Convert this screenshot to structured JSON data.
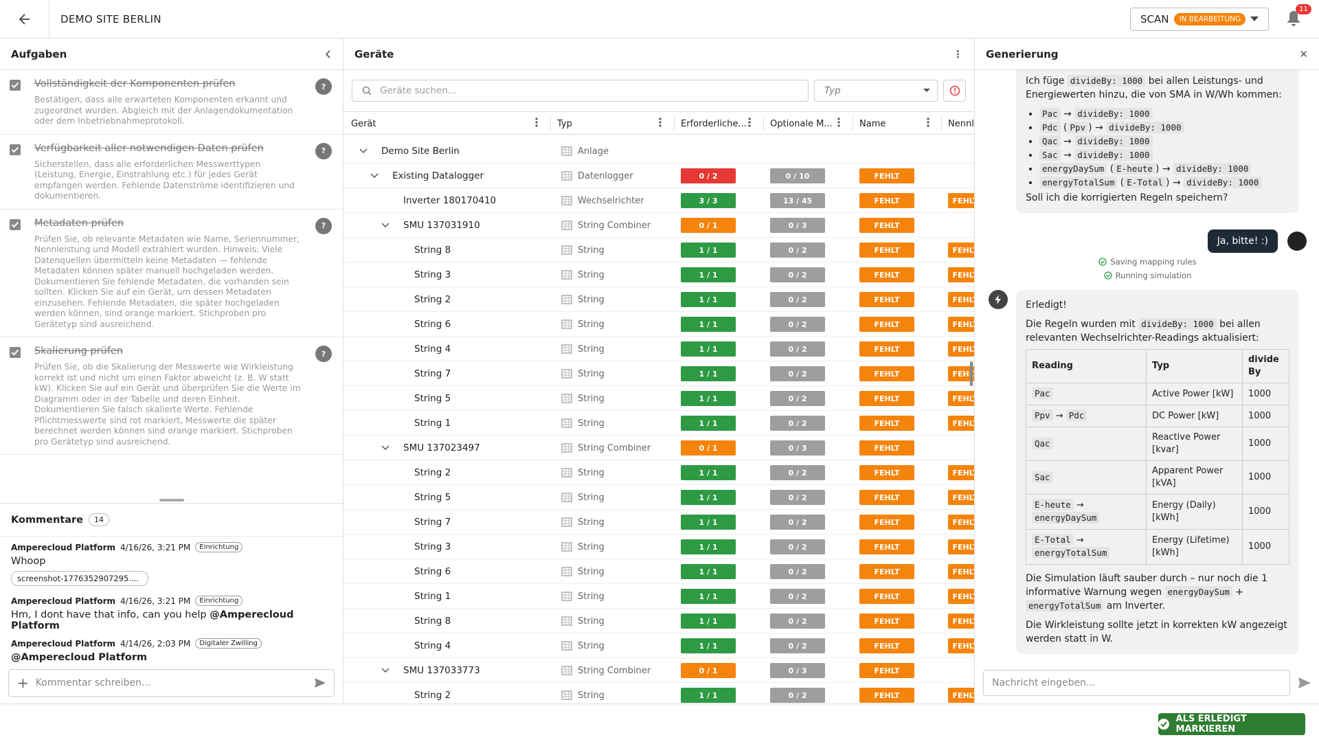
{
  "header": {
    "title": "DEMO SITE BERLIN",
    "scan": "SCAN",
    "status": "IN BEARBEITUNG",
    "notifications": "11"
  },
  "tasks": {
    "title": "Aufgaben",
    "help": "?",
    "items": [
      {
        "title": "Vollständigkeit der Komponenten prüfen",
        "description": "Bestätigen, dass alle erwarteten Komponenten erkannt und zugeordnet wurden. Abgleich mit der Anlagendokumentation oder dem Inbetriebnahmeprotokoll."
      },
      {
        "title": "Verfügbarkeit aller notwendigen Daten prüfen",
        "description": "Sicherstellen, dass alle erforderlichen Messwerttypen (Leistung, Energie, Einstrahlung etc.) für jedes Gerät empfangen werden. Fehlende Datenströme identifizieren und dokumentieren."
      },
      {
        "title": "Metadaten prüfen",
        "description": "Prüfen Sie, ob relevante Metadaten wie Name, Seriennummer, Nennleistung und Modell extrahiert wurden. Hinweis: Viele Datenquellen übermitteln keine Metadaten — fehlende Metadaten können später manuell hochgeladen werden. Dokumentieren Sie fehlende Metadaten, die vorhanden sein sollten. Klicken Sie auf ein Gerät, um dessen Metadaten einzusehen. Fehlende Metadaten, die später hochgeladen werden können, sind orange markiert. Stichproben pro Gerätetyp sind ausreichend."
      },
      {
        "title": "Skalierung prüfen",
        "description": "Prüfen Sie, ob die Skalierung der Messwerte wie Wirkleistung korrekt ist und nicht um einen Faktor abweicht (z. B. W statt kW). Klicken Sie auf ein Gerät und überprüfen Sie die Werte im Diagramm oder in der Tabelle und deren Einheit. Dokumentieren Sie falsch skalierte Werte. Fehlende Pflichtmesswerte sind rot markiert, Messwerte die später berechnet werden können sind orange markiert. Stichproben pro Gerätetyp sind ausreichend."
      }
    ]
  },
  "comments": {
    "title": "Kommentare",
    "count": "14",
    "placeholder": "Kommentar schreiben...",
    "items": [
      {
        "author": "Amperecloud Platform",
        "date": "4/16/26, 3:21 PM",
        "tag": "Einrichtung",
        "text": "Whoop",
        "attachment": "screenshot-1776352907295...."
      },
      {
        "author": "Amperecloud Platform",
        "date": "4/16/26, 3:21 PM",
        "tag": "Einrichtung",
        "text": "Hm, I dont have that info, can you help ",
        "mention": "@Amperecloud Platform"
      },
      {
        "author": "Amperecloud Platform",
        "date": "4/14/26, 2:03 PM",
        "tag": "Digitaler Zwilling",
        "mention": "@Amperecloud Platform"
      }
    ]
  },
  "devices": {
    "title": "Geräte",
    "search_placeholder": "Geräte suchen...",
    "type_filter": "Typ",
    "columns": [
      "Gerät",
      "Typ",
      "Erforderliche...",
      "Optionale M...",
      "Name",
      "Nennleistung"
    ],
    "rows": [
      {
        "name": "Demo Site Berlin",
        "level": 0,
        "expand": true,
        "type": "Anlage"
      },
      {
        "name": "Existing Datalogger",
        "level": 1,
        "expand": true,
        "type": "Datenlogger",
        "required": "0 / 2",
        "required_color": "#e53935",
        "optional": "0 / 10",
        "name_status": "FEHLT"
      },
      {
        "name": "Inverter 180170410",
        "level": 2,
        "type": "Wechselrichter",
        "required": "3 / 3",
        "required_color": "#2e9a44",
        "optional": "13 / 45",
        "name_status": "FEHLT",
        "rating": "FEHLT"
      },
      {
        "name": "SMU 137031910",
        "level": 2,
        "expand": true,
        "type": "String Combiner",
        "required": "0 / 1",
        "required_color": "#f5840c",
        "optional": "0 / 3",
        "name_status": "FEHLT"
      },
      {
        "name": "String 8",
        "level": 3,
        "type": "String",
        "required": "1 / 1",
        "required_color": "#2e9a44",
        "optional": "0 / 2",
        "name_status": "FEHLT",
        "rating": "FEHLT"
      },
      {
        "name": "String 3",
        "level": 3,
        "type": "String",
        "required": "1 / 1",
        "required_color": "#2e9a44",
        "optional": "0 / 2",
        "name_status": "FEHLT",
        "rating": "FEHLT"
      },
      {
        "name": "String 2",
        "level": 3,
        "type": "String",
        "required": "1 / 1",
        "required_color": "#2e9a44",
        "optional": "0 / 2",
        "name_status": "FEHLT",
        "rating": "FEHLT"
      },
      {
        "name": "String 6",
        "level": 3,
        "type": "String",
        "required": "1 / 1",
        "required_color": "#2e9a44",
        "optional": "0 / 2",
        "name_status": "FEHLT",
        "rating": "FEHLT"
      },
      {
        "name": "String 4",
        "level": 3,
        "type": "String",
        "required": "1 / 1",
        "required_color": "#2e9a44",
        "optional": "0 / 2",
        "name_status": "FEHLT",
        "rating": "FEHLT"
      },
      {
        "name": "String 7",
        "level": 3,
        "type": "String",
        "required": "1 / 1",
        "required_color": "#2e9a44",
        "optional": "0 / 2",
        "name_status": "FEHLT",
        "rating": "FEHLT"
      },
      {
        "name": "String 5",
        "level": 3,
        "type": "String",
        "required": "1 / 1",
        "required_color": "#2e9a44",
        "optional": "0 / 2",
        "name_status": "FEHLT",
        "rating": "FEHLT"
      },
      {
        "name": "String 1",
        "level": 3,
        "type": "String",
        "required": "1 / 1",
        "required_color": "#2e9a44",
        "optional": "0 / 2",
        "name_status": "FEHLT",
        "rating": "FEHLT"
      },
      {
        "name": "SMU 137023497",
        "level": 2,
        "expand": true,
        "type": "String Combiner",
        "required": "0 / 1",
        "required_color": "#f5840c",
        "optional": "0 / 3",
        "name_status": "FEHLT"
      },
      {
        "name": "String 2",
        "level": 3,
        "type": "String",
        "required": "1 / 1",
        "required_color": "#2e9a44",
        "optional": "0 / 2",
        "name_status": "FEHLT",
        "rating": "FEHLT"
      },
      {
        "name": "String 5",
        "level": 3,
        "type": "String",
        "required": "1 / 1",
        "required_color": "#2e9a44",
        "optional": "0 / 2",
        "name_status": "FEHLT",
        "rating": "FEHLT"
      },
      {
        "name": "String 7",
        "level": 3,
        "type": "String",
        "required": "1 / 1",
        "required_color": "#2e9a44",
        "optional": "0 / 2",
        "name_status": "FEHLT",
        "rating": "FEHLT"
      },
      {
        "name": "String 3",
        "level": 3,
        "type": "String",
        "required": "1 / 1",
        "required_color": "#2e9a44",
        "optional": "0 / 2",
        "name_status": "FEHLT",
        "rating": "FEHLT"
      },
      {
        "name": "String 6",
        "level": 3,
        "type": "String",
        "required": "1 / 1",
        "required_color": "#2e9a44",
        "optional": "0 / 2",
        "name_status": "FEHLT",
        "rating": "FEHLT"
      },
      {
        "name": "String 1",
        "level": 3,
        "type": "String",
        "required": "1 / 1",
        "required_color": "#2e9a44",
        "optional": "0 / 2",
        "name_status": "FEHLT",
        "rating": "FEHLT"
      },
      {
        "name": "String 8",
        "level": 3,
        "type": "String",
        "required": "1 / 1",
        "required_color": "#2e9a44",
        "optional": "0 / 2",
        "name_status": "FEHLT",
        "rating": "FEHLT"
      },
      {
        "name": "String 4",
        "level": 3,
        "type": "String",
        "required": "1 / 1",
        "required_color": "#2e9a44",
        "optional": "0 / 2",
        "name_status": "FEHLT",
        "rating": "FEHLT"
      },
      {
        "name": "SMU 137033773",
        "level": 2,
        "expand": true,
        "type": "String Combiner",
        "required": "0 / 1",
        "required_color": "#f5840c",
        "optional": "0 / 3",
        "name_status": "FEHLT"
      },
      {
        "name": "String 2",
        "level": 3,
        "type": "String",
        "required": "1 / 1",
        "required_color": "#2e9a44",
        "optional": "0 / 2",
        "name_status": "FEHLT",
        "rating": "FEHLT"
      }
    ]
  },
  "chat": {
    "title": "Generierung",
    "input_placeholder": "Nachricht eingeben...",
    "bot_message_1": {
      "intro": [
        {
          "text": "Ich füge "
        },
        {
          "code": "divideBy: 1000"
        },
        {
          "text": " bei allen Leistungs- und Energiewerten hinzu, die von SMA in W/Wh kommen:"
        }
      ],
      "items": [
        [
          {
            "code": "Pac"
          },
          {
            "text": " → "
          },
          {
            "code": "divideBy: 1000"
          }
        ],
        [
          {
            "code": "Pdc"
          },
          {
            "text": " ("
          },
          {
            "code": "Ppv"
          },
          {
            "text": ") → "
          },
          {
            "code": "divideBy: 1000"
          }
        ],
        [
          {
            "code": "Qac"
          },
          {
            "text": " → "
          },
          {
            "code": "divideBy: 1000"
          }
        ],
        [
          {
            "code": "Sac"
          },
          {
            "text": " → "
          },
          {
            "code": "divideBy: 1000"
          }
        ],
        [
          {
            "code": "energyDaySum"
          },
          {
            "text": " ("
          },
          {
            "code": "E-heute"
          },
          {
            "text": ") → "
          },
          {
            "code": "divideBy: 1000"
          }
        ],
        [
          {
            "code": "energyTotalSum"
          },
          {
            "text": " ("
          },
          {
            "code": "E-Total"
          },
          {
            "text": ") → "
          },
          {
            "code": "divideBy: 1000"
          }
        ]
      ],
      "question": "Soll ich die korrigierten Regeln speichern?"
    },
    "user_message": "Ja, bitte! :)",
    "status": [
      "Saving mapping rules",
      "Running simulation"
    ],
    "bot_message_2": {
      "heading": "Erledigt!",
      "intro": [
        {
          "text": "Die Regeln wurden mit "
        },
        {
          "code": "divideBy: 1000"
        },
        {
          "text": " bei allen relevanten Wechselrichter-Readings aktualisiert:"
        }
      ],
      "table": {
        "headers": [
          "Reading",
          "Typ",
          "divide By"
        ],
        "rows": [
          {
            "reading": [
              {
                "code": "Pac"
              }
            ],
            "typ": "Active Power [kW]",
            "divide_by": "1000"
          },
          {
            "reading": [
              {
                "code": "Ppv"
              },
              {
                "text": " → "
              },
              {
                "code": "Pdc"
              }
            ],
            "typ": "DC Power [kW]",
            "divide_by": "1000"
          },
          {
            "reading": [
              {
                "code": "Qac"
              }
            ],
            "typ": "Reactive Power [kvar]",
            "divide_by": "1000"
          },
          {
            "reading": [
              {
                "code": "Sac"
              }
            ],
            "typ": "Apparent Power [kVA]",
            "divide_by": "1000"
          },
          {
            "reading": [
              {
                "code": "E-heute"
              },
              {
                "text": " → "
              },
              {
                "code": "energyDaySum"
              }
            ],
            "typ": "Energy (Daily) [kWh]",
            "divide_by": "1000"
          },
          {
            "reading": [
              {
                "code": "E-Total"
              },
              {
                "text": " → "
              },
              {
                "code": "energyTotalSum"
              }
            ],
            "typ": "Energy (Lifetime) [kWh]",
            "divide_by": "1000"
          }
        ]
      },
      "paragraphs": [
        [
          {
            "text": "Die Simulation läuft sauber durch – nur noch die 1 informative Warnung wegen "
          },
          {
            "code": "energyDaySum"
          },
          {
            "text": " + "
          },
          {
            "code": "energyTotalSum"
          },
          {
            "text": " am Inverter."
          }
        ],
        [
          {
            "text": "Die Wirkleistung sollte jetzt in korrekten kW angezeigt werden statt in W."
          }
        ]
      ]
    }
  },
  "footer": {
    "button": "ALS ERLEDIGT MARKIEREN"
  }
}
